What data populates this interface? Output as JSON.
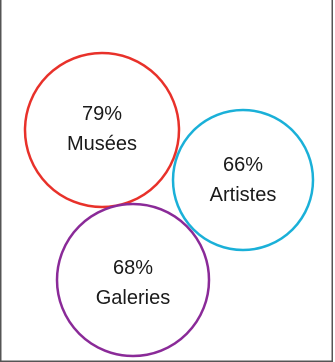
{
  "chart_data": {
    "type": "bubble",
    "title": "",
    "series": [
      {
        "percent": "79%",
        "label": "Musées",
        "value": 79,
        "color": "#e8312a"
      },
      {
        "percent": "66%",
        "label": "Artistes",
        "value": 66,
        "color": "#1ab0d8"
      },
      {
        "percent": "68%",
        "label": "Galeries",
        "value": 68,
        "color": "#8a2a98"
      }
    ]
  },
  "colors": {
    "border": "#555555",
    "text": "#1a1a1a"
  }
}
